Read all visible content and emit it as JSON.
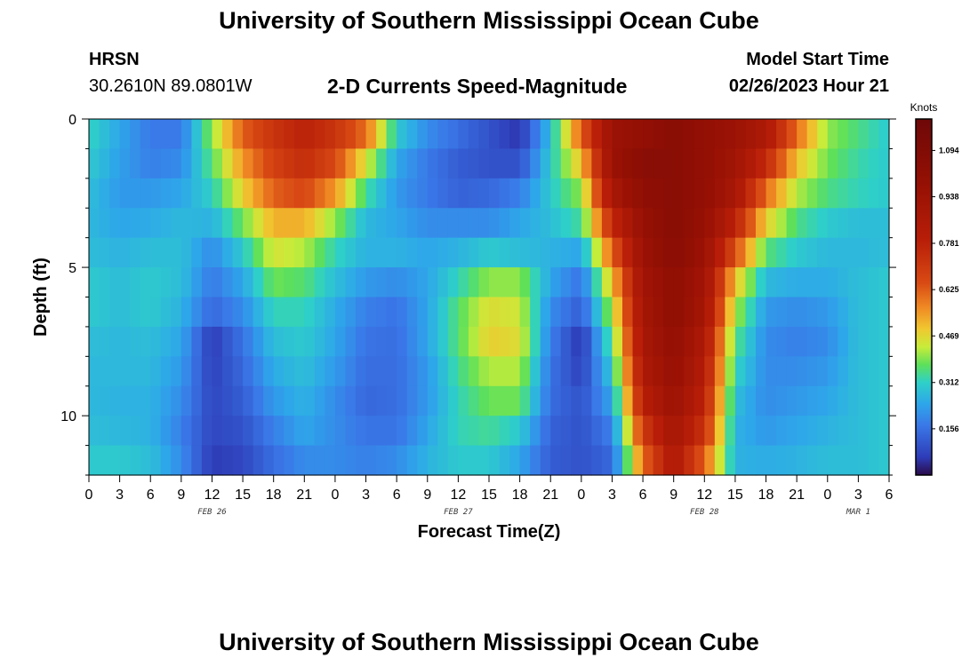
{
  "header": {
    "title": "University of Southern Mississippi Ocean Cube",
    "station_name": "HRSN",
    "station_coords": "30.2610N  89.0801W",
    "chart_title": "2-D Currents Speed-Magnitude",
    "model_label": "Model Start Time",
    "model_time": "02/26/2023 Hour 21"
  },
  "footer": {
    "title": "University of Southern Mississippi Ocean Cube"
  },
  "chart_data": {
    "type": "heatmap",
    "title": "2-D Currents Speed-Magnitude",
    "xlabel": "Forecast Time(Z)",
    "ylabel": "Depth (ft)",
    "xlim": [
      0,
      78
    ],
    "ylim": [
      0,
      12
    ],
    "y_ticks": [
      0,
      5,
      10
    ],
    "y_tick_labels": [
      "0",
      "5",
      "10"
    ],
    "x_tick_labels": [
      "0",
      "3",
      "6",
      "9",
      "12",
      "15",
      "18",
      "21",
      "0",
      "3",
      "6",
      "9",
      "12",
      "15",
      "18",
      "21",
      "0",
      "3",
      "6",
      "9",
      "12",
      "15",
      "18",
      "21",
      "0",
      "3",
      "6"
    ],
    "date_labels": [
      {
        "text": "FEB 26",
        "hour": 12
      },
      {
        "text": "FEB 27",
        "hour": 36
      },
      {
        "text": "FEB 28",
        "hour": 60
      },
      {
        "text": "MAR 1",
        "hour": 75
      }
    ],
    "colorbar": {
      "unit": "Knots",
      "min": 0.0,
      "max": 1.2,
      "ticks": [
        0.156,
        0.312,
        0.469,
        0.625,
        0.781,
        0.938,
        1.094
      ],
      "tick_labels": [
        "0.156",
        "0.312",
        "0.469",
        "0.625",
        "0.781",
        "0.938",
        "1.094"
      ]
    },
    "depth_rows_ft": [
      0,
      1,
      2,
      3,
      4,
      5,
      6,
      7,
      8,
      9,
      10,
      11
    ],
    "speed_knots": [
      [
        0.32,
        0.24,
        0.17,
        0.17,
        0.4,
        0.62,
        0.72,
        0.78,
        0.72,
        0.6,
        0.3,
        0.2,
        0.15,
        0.1,
        0.05,
        0.28,
        0.62,
        0.95,
        1.0,
        1.05,
        1.0,
        0.95,
        0.85,
        0.6,
        0.4,
        0.35,
        0.3
      ],
      [
        0.3,
        0.23,
        0.18,
        0.2,
        0.36,
        0.55,
        0.68,
        0.74,
        0.66,
        0.45,
        0.24,
        0.17,
        0.12,
        0.1,
        0.1,
        0.3,
        0.5,
        0.95,
        1.05,
        1.05,
        1.0,
        0.92,
        0.75,
        0.5,
        0.38,
        0.33,
        0.3
      ],
      [
        0.28,
        0.22,
        0.22,
        0.24,
        0.31,
        0.48,
        0.62,
        0.66,
        0.55,
        0.34,
        0.22,
        0.17,
        0.13,
        0.14,
        0.18,
        0.3,
        0.4,
        0.88,
        1.02,
        1.05,
        1.0,
        0.88,
        0.6,
        0.42,
        0.35,
        0.32,
        0.3
      ],
      [
        0.27,
        0.24,
        0.25,
        0.27,
        0.26,
        0.38,
        0.52,
        0.52,
        0.4,
        0.27,
        0.24,
        0.2,
        0.2,
        0.2,
        0.24,
        0.28,
        0.34,
        0.75,
        0.98,
        1.05,
        0.98,
        0.78,
        0.48,
        0.35,
        0.3,
        0.28,
        0.28
      ],
      [
        0.28,
        0.26,
        0.28,
        0.28,
        0.2,
        0.3,
        0.45,
        0.42,
        0.32,
        0.26,
        0.26,
        0.24,
        0.26,
        0.3,
        0.28,
        0.26,
        0.24,
        0.62,
        0.95,
        1.05,
        0.95,
        0.65,
        0.36,
        0.3,
        0.27,
        0.27,
        0.28
      ],
      [
        0.3,
        0.28,
        0.3,
        0.28,
        0.17,
        0.24,
        0.38,
        0.36,
        0.28,
        0.22,
        0.2,
        0.24,
        0.32,
        0.4,
        0.4,
        0.24,
        0.16,
        0.5,
        0.92,
        1.02,
        0.92,
        0.5,
        0.27,
        0.25,
        0.25,
        0.28,
        0.3
      ],
      [
        0.3,
        0.28,
        0.3,
        0.26,
        0.14,
        0.2,
        0.32,
        0.32,
        0.25,
        0.18,
        0.16,
        0.24,
        0.36,
        0.46,
        0.44,
        0.2,
        0.12,
        0.42,
        0.9,
        1.02,
        0.9,
        0.42,
        0.22,
        0.2,
        0.22,
        0.28,
        0.3
      ],
      [
        0.28,
        0.27,
        0.28,
        0.24,
        0.06,
        0.16,
        0.28,
        0.3,
        0.24,
        0.16,
        0.15,
        0.24,
        0.36,
        0.48,
        0.46,
        0.18,
        0.05,
        0.36,
        0.88,
        1.0,
        0.85,
        0.36,
        0.2,
        0.18,
        0.2,
        0.28,
        0.3
      ],
      [
        0.27,
        0.27,
        0.27,
        0.22,
        0.07,
        0.14,
        0.25,
        0.28,
        0.22,
        0.15,
        0.15,
        0.22,
        0.34,
        0.42,
        0.42,
        0.16,
        0.07,
        0.3,
        0.85,
        0.98,
        0.82,
        0.32,
        0.2,
        0.2,
        0.22,
        0.28,
        0.3
      ],
      [
        0.27,
        0.26,
        0.26,
        0.2,
        0.08,
        0.12,
        0.22,
        0.26,
        0.2,
        0.14,
        0.15,
        0.22,
        0.32,
        0.38,
        0.38,
        0.15,
        0.1,
        0.24,
        0.8,
        0.95,
        0.78,
        0.28,
        0.2,
        0.22,
        0.24,
        0.28,
        0.3
      ],
      [
        0.28,
        0.27,
        0.26,
        0.18,
        0.08,
        0.1,
        0.18,
        0.24,
        0.2,
        0.16,
        0.16,
        0.24,
        0.32,
        0.34,
        0.3,
        0.13,
        0.1,
        0.18,
        0.7,
        0.9,
        0.72,
        0.26,
        0.22,
        0.24,
        0.26,
        0.28,
        0.3
      ],
      [
        0.3,
        0.3,
        0.28,
        0.2,
        0.06,
        0.08,
        0.15,
        0.2,
        0.2,
        0.18,
        0.2,
        0.26,
        0.3,
        0.3,
        0.24,
        0.12,
        0.1,
        0.14,
        0.6,
        0.85,
        0.62,
        0.26,
        0.25,
        0.26,
        0.28,
        0.28,
        0.3
      ]
    ]
  }
}
